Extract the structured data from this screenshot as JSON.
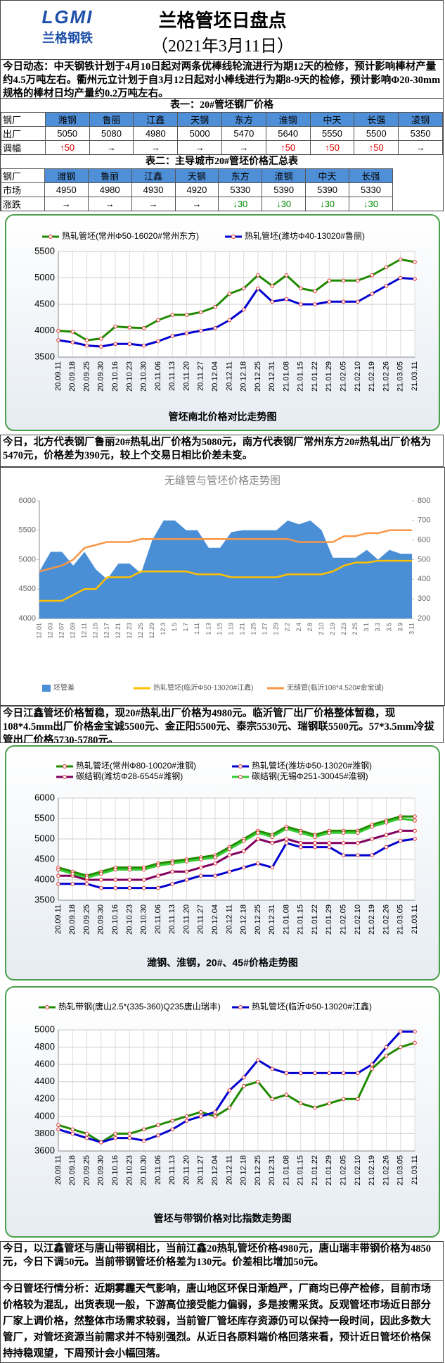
{
  "header": {
    "logo": "LGMI",
    "logo_text": "兰格钢铁",
    "title": "兰格管坯日盘点",
    "date": "（2021年3月11日）"
  },
  "news": "今日动态：中天钢铁计划于4月10日起对两条优棒线轮流进行为期12天的检修，预计影响棒材产量约4.5万吨左右。衢州元立计划于自3月12日起对小棒线进行为期8-9天的检修，预计影响Φ20-30mm规格的棒材日均产量约0.2万吨左右。",
  "table1": {
    "title": "表一：20#管坯钢厂价格",
    "header": [
      "钢厂",
      "潍钢",
      "鲁丽",
      "江鑫",
      "天钢",
      "东方",
      "淮钢",
      "中天",
      "长强",
      "凌钢"
    ],
    "rows": [
      [
        "出厂",
        "5050",
        "5080",
        "4980",
        "5000",
        "5470",
        "5640",
        "5550",
        "5500",
        "5350"
      ],
      [
        "调幅",
        "↑50",
        "→",
        "→",
        "→",
        "→",
        "↑50",
        "↑50",
        "↑50",
        "→"
      ]
    ]
  },
  "table2": {
    "title": "表二：主导城市20#管坯价格汇总表",
    "header": [
      "钢厂",
      "潍钢",
      "鲁丽",
      "江鑫",
      "天钢",
      "东方",
      "淮钢",
      "中天",
      "长强"
    ],
    "rows": [
      [
        "市场",
        "4950",
        "4980",
        "4930",
        "4920",
        "5330",
        "5390",
        "5390",
        "5330"
      ],
      [
        "涨跌",
        "→",
        "→",
        "→",
        "→",
        "↓30",
        "↓30",
        "↓30",
        "↓30"
      ]
    ]
  },
  "notes": [
    "今日，北方代表钢厂鲁丽20#热轧出厂价格为5080元，南方代表钢厂常州东方20#热轧出厂价格为5470元，价格差为390元，较上个交易日相比价差未变。",
    "今日江鑫管坯价格暂稳，现20#热轧出厂价格为4980元。临沂管厂出厂价格整体暂稳，现108*4.5mm出厂价格金宝诚5500元、金正阳5500元、泰宗5530元、瑞钢联5500元。57*3.5mm冷拔管出厂价格5730-5780元。",
    "今日，以江鑫管坯与唐山带钢相比，当前江鑫20热轧管坯价格4980元，唐山瑞丰带钢价格为4850元，今日下调50元。当前带钢管坯价格差为130元。价差相比增加50元。",
    "今日管坯行情分析：近期雾霾天气影响，唐山地区环保日渐趋严，厂商均已停产检修，目前市场价格较为混乱，出货表现一般，下游高位接受能力偏弱，多是按需采货。反观管坯市场近日部分厂家上调价格，然整体市场需求较弱，当前管厂管坯库存资源仍可以保持一段时间，因此多数大管厂，对管坯资源当前需求并不特别强烈。从近日各原料端价格回落来看，预计近日管坯价格保持持稳观望，下周预计会小幅回落。"
  ],
  "chart_data": [
    {
      "type": "line",
      "title": "管坯南北价格对比走势图",
      "grid": true,
      "markers": true,
      "categories": [
        "20.09.11",
        "20.09.18",
        "20.09.25",
        "20.09.30",
        "20.10.16",
        "20.10.23",
        "20.10.30",
        "20.11.06",
        "20.11.13",
        "20.11.20",
        "20.11.27",
        "20.12.04",
        "20.12.11",
        "20.12.18",
        "20.12.25",
        "20.12.31",
        "21.01.08",
        "21.01.15",
        "21.01.22",
        "21.01.29",
        "21.02.05",
        "21.02.10",
        "21.02.19",
        "21.02.26",
        "21.03.05",
        "21.03.11"
      ],
      "ylim": [
        3500,
        5500
      ],
      "yticks": [
        3500,
        4000,
        4500,
        5000,
        5500
      ],
      "series": [
        {
          "name": "热轧管坯(常州Φ50-16020#常州东方)",
          "color": "#1f8a00",
          "values": [
            4000,
            3980,
            3820,
            3850,
            4080,
            4060,
            4050,
            4200,
            4300,
            4300,
            4350,
            4450,
            4700,
            4800,
            5050,
            4850,
            5050,
            4800,
            4750,
            4950,
            4950,
            4950,
            5050,
            5200,
            5350,
            5300
          ]
        },
        {
          "name": "热轧管坯(潍坊Φ40-13020#鲁丽)",
          "color": "#0000d0",
          "values": [
            3820,
            3780,
            3720,
            3700,
            3750,
            3750,
            3720,
            3800,
            3900,
            3950,
            4000,
            4050,
            4200,
            4400,
            4800,
            4550,
            4600,
            4500,
            4500,
            4550,
            4550,
            4550,
            4700,
            4850,
            5000,
            4980
          ]
        }
      ]
    },
    {
      "type": "line",
      "title": "无缝管与管坯价格走势图",
      "grid": false,
      "markers": false,
      "categories": [
        "12.01",
        "12.03",
        "12.07",
        "12.09",
        "12.11",
        "12.15",
        "12.17",
        "12.21",
        "12.23",
        "12.25",
        "12.29",
        "12.3",
        "1.5",
        "1.7",
        "1.11",
        "1.13",
        "1.15",
        "1.19",
        "1.21",
        "1.25",
        "1.27",
        "1.29",
        "2.2",
        "2.4",
        "2.8",
        "2.10",
        "2.19",
        "2.23",
        "2.25",
        "3.1",
        "3.3",
        "3.5",
        "3.9",
        "3.11"
      ],
      "ylim": [
        4000,
        6000
      ],
      "yticks": [
        4000,
        4500,
        5000,
        5500,
        6000
      ],
      "y2lim": [
        200,
        800
      ],
      "y2ticks": [
        200,
        300,
        400,
        500,
        600,
        700,
        800
      ],
      "series": [
        {
          "name": "坯管差",
          "type": "area",
          "axis": "y2",
          "color": "#4a8fd6",
          "values": [
            440,
            540,
            540,
            470,
            540,
            450,
            400,
            480,
            480,
            430,
            600,
            700,
            700,
            650,
            650,
            560,
            560,
            640,
            650,
            650,
            650,
            650,
            700,
            680,
            700,
            650,
            510,
            510,
            510,
            550,
            500,
            550,
            530,
            530
          ]
        },
        {
          "name": "热轧管坯(临沂Φ50-13020#江鑫)",
          "color": "#ffc000",
          "values": [
            4300,
            4300,
            4300,
            4400,
            4500,
            4500,
            4700,
            4700,
            4700,
            4800,
            4800,
            4800,
            4800,
            4800,
            4750,
            4750,
            4750,
            4700,
            4700,
            4700,
            4700,
            4700,
            4750,
            4750,
            4750,
            4750,
            4800,
            4900,
            4950,
            4950,
            4980,
            4980,
            4980,
            4980
          ]
        },
        {
          "name": "无缝管(临沂108*4.520#金宝诚)",
          "color": "#f79646",
          "values": [
            4800,
            4850,
            4900,
            5000,
            5200,
            5250,
            5300,
            5300,
            5300,
            5350,
            5350,
            5350,
            5350,
            5350,
            5350,
            5350,
            5350,
            5350,
            5350,
            5350,
            5350,
            5350,
            5350,
            5300,
            5300,
            5300,
            5300,
            5400,
            5400,
            5450,
            5450,
            5500,
            5500,
            5500
          ]
        }
      ]
    },
    {
      "type": "line",
      "title": "潍钢、淮钢，20#、45#价格走势图",
      "grid": true,
      "markers": true,
      "categories": [
        "20.09.11",
        "20.09.18",
        "20.09.25",
        "20.09.30",
        "20.10.16",
        "20.10.23",
        "20.10.30",
        "20.11.06",
        "20.11.13",
        "20.11.20",
        "20.11.27",
        "20.12.04",
        "20.12.11",
        "20.12.18",
        "20.12.25",
        "20.12.31",
        "21.01.08",
        "21.01.15",
        "21.01.22",
        "21.01.29",
        "21.02.05",
        "21.02.10",
        "21.02.19",
        "21.02.26",
        "21.03.05",
        "21.03.11"
      ],
      "ylim": [
        3500,
        6000
      ],
      "yticks": [
        3500,
        4000,
        4500,
        5000,
        5500,
        6000
      ],
      "series": [
        {
          "name": "热轧管坯(常州Φ80-10020#淮钢)",
          "color": "#1f8a00",
          "values": [
            4300,
            4200,
            4100,
            4200,
            4300,
            4300,
            4300,
            4400,
            4450,
            4500,
            4550,
            4600,
            4800,
            5000,
            5200,
            5100,
            5300,
            5200,
            5100,
            5200,
            5200,
            5200,
            5350,
            5450,
            5550,
            5550
          ]
        },
        {
          "name": "热轧管坯(潍坊Φ50-13020#潍钢)",
          "color": "#0000d0",
          "values": [
            3900,
            3900,
            3900,
            3800,
            3800,
            3800,
            3800,
            3800,
            3900,
            4000,
            4100,
            4100,
            4200,
            4300,
            4400,
            4300,
            4900,
            4800,
            4800,
            4800,
            4600,
            4600,
            4600,
            4800,
            4950,
            5000
          ]
        },
        {
          "name": "碳结钢(潍坊Φ28-6545#潍钢)",
          "color": "#800060",
          "values": [
            4100,
            4100,
            4000,
            4000,
            4000,
            4000,
            4000,
            4100,
            4200,
            4200,
            4300,
            4400,
            4600,
            4700,
            5000,
            4900,
            5000,
            4900,
            4900,
            4900,
            4900,
            4900,
            5000,
            5100,
            5200,
            5200
          ]
        },
        {
          "name": "碳结钢(无锡Φ251-30045#淮钢)",
          "color": "#33cc33",
          "values": [
            4250,
            4150,
            4050,
            4150,
            4250,
            4250,
            4250,
            4350,
            4400,
            4450,
            4500,
            4550,
            4750,
            4950,
            5150,
            5050,
            5250,
            5150,
            5050,
            5150,
            5150,
            5150,
            5300,
            5400,
            5500,
            5450
          ]
        }
      ]
    },
    {
      "type": "line",
      "title": "管坯与带钢价格对比指数走势图",
      "grid": true,
      "markers": true,
      "categories": [
        "20.09.11",
        "20.09.18",
        "20.09.25",
        "20.09.30",
        "20.10.16",
        "20.10.23",
        "20.10.30",
        "20.11.06",
        "20.11.13",
        "20.11.20",
        "20.11.27",
        "20.12.04",
        "20.12.11",
        "20.12.18",
        "20.12.25",
        "20.12.31",
        "21.01.08",
        "21.01.15",
        "21.01.22",
        "21.01.29",
        "21.02.05",
        "21.02.10",
        "21.02.19",
        "21.02.26",
        "21.03.05",
        "21.03.11"
      ],
      "ylim": [
        3600,
        5000
      ],
      "yticks": [
        3600,
        3800,
        4000,
        4200,
        4400,
        4600,
        4800,
        5000
      ],
      "series": [
        {
          "name": "热轧带钢(唐山2.5*(335-360)Q235唐山瑞丰)",
          "color": "#1f8a00",
          "values": [
            3900,
            3850,
            3800,
            3700,
            3800,
            3800,
            3850,
            3900,
            3950,
            4000,
            4050,
            4000,
            4100,
            4350,
            4400,
            4200,
            4250,
            4150,
            4100,
            4150,
            4200,
            4200,
            4550,
            4700,
            4800,
            4850
          ]
        },
        {
          "name": "热轧管坯(临沂Φ50-13020#江鑫)",
          "color": "#0000d0",
          "values": [
            3850,
            3800,
            3750,
            3700,
            3750,
            3750,
            3720,
            3780,
            3850,
            3950,
            4000,
            4050,
            4300,
            4450,
            4650,
            4550,
            4500,
            4500,
            4500,
            4500,
            4500,
            4500,
            4600,
            4800,
            4980,
            4980
          ]
        }
      ]
    }
  ]
}
